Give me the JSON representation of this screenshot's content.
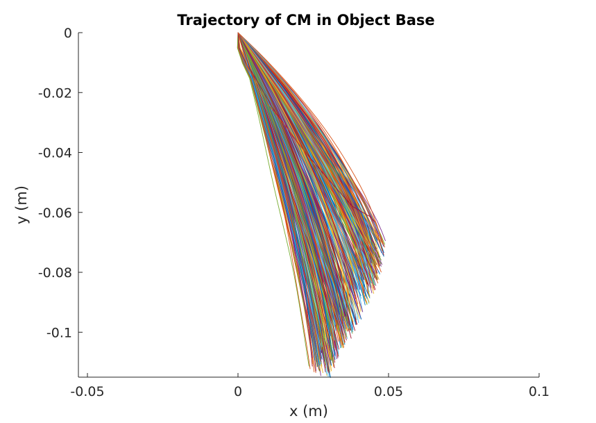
{
  "chart_data": {
    "type": "line",
    "title": "Trajectory of CM in Object Base",
    "xlabel": "x (m)",
    "ylabel": "y (m)",
    "xlim": [
      -0.053,
      0.1
    ],
    "ylim": [
      -0.115,
      0
    ],
    "xticks": [
      -0.05,
      0,
      0.05,
      0.1
    ],
    "xtick_labels": [
      "-0.05",
      "0",
      "0.05",
      "0.1"
    ],
    "yticks": [
      0,
      -0.02,
      -0.04,
      -0.06,
      -0.08,
      -0.1
    ],
    "ytick_labels": [
      "0",
      "-0.02",
      "-0.04",
      "-0.06",
      "-0.08",
      "-0.1"
    ],
    "grid": false,
    "legend": "none",
    "series_colors": [
      "#0072BD",
      "#D95319",
      "#EDB120",
      "#7E2F8E",
      "#77AC30",
      "#4DBEEE",
      "#A2142F"
    ],
    "num_trajectories": 450,
    "start_point": [
      0,
      0
    ],
    "endpoint_envelope": {
      "x": [
        0.0305,
        0.032,
        0.035,
        0.038,
        0.04,
        0.043,
        0.046,
        0.048,
        0.049
      ],
      "y": [
        -0.1145,
        -0.111,
        -0.105,
        -0.1,
        -0.097,
        -0.09,
        -0.084,
        -0.078,
        -0.069
      ]
    },
    "outlier_trajectories": [
      {
        "color": "#A2142F",
        "x": [
          0,
          0.004,
          0.012,
          0.02,
          0.03,
          0.038,
          0.044,
          0.0455
        ],
        "y": [
          0,
          -0.012,
          -0.026,
          -0.037,
          -0.049,
          -0.058,
          -0.0615,
          -0.0633
        ]
      },
      {
        "color": "#D95319",
        "x": [
          0,
          0.003,
          0.01,
          0.018,
          0.026,
          0.032,
          0.036
        ],
        "y": [
          0,
          -0.011,
          -0.024,
          -0.034,
          -0.045,
          -0.054,
          -0.062
        ]
      }
    ]
  }
}
